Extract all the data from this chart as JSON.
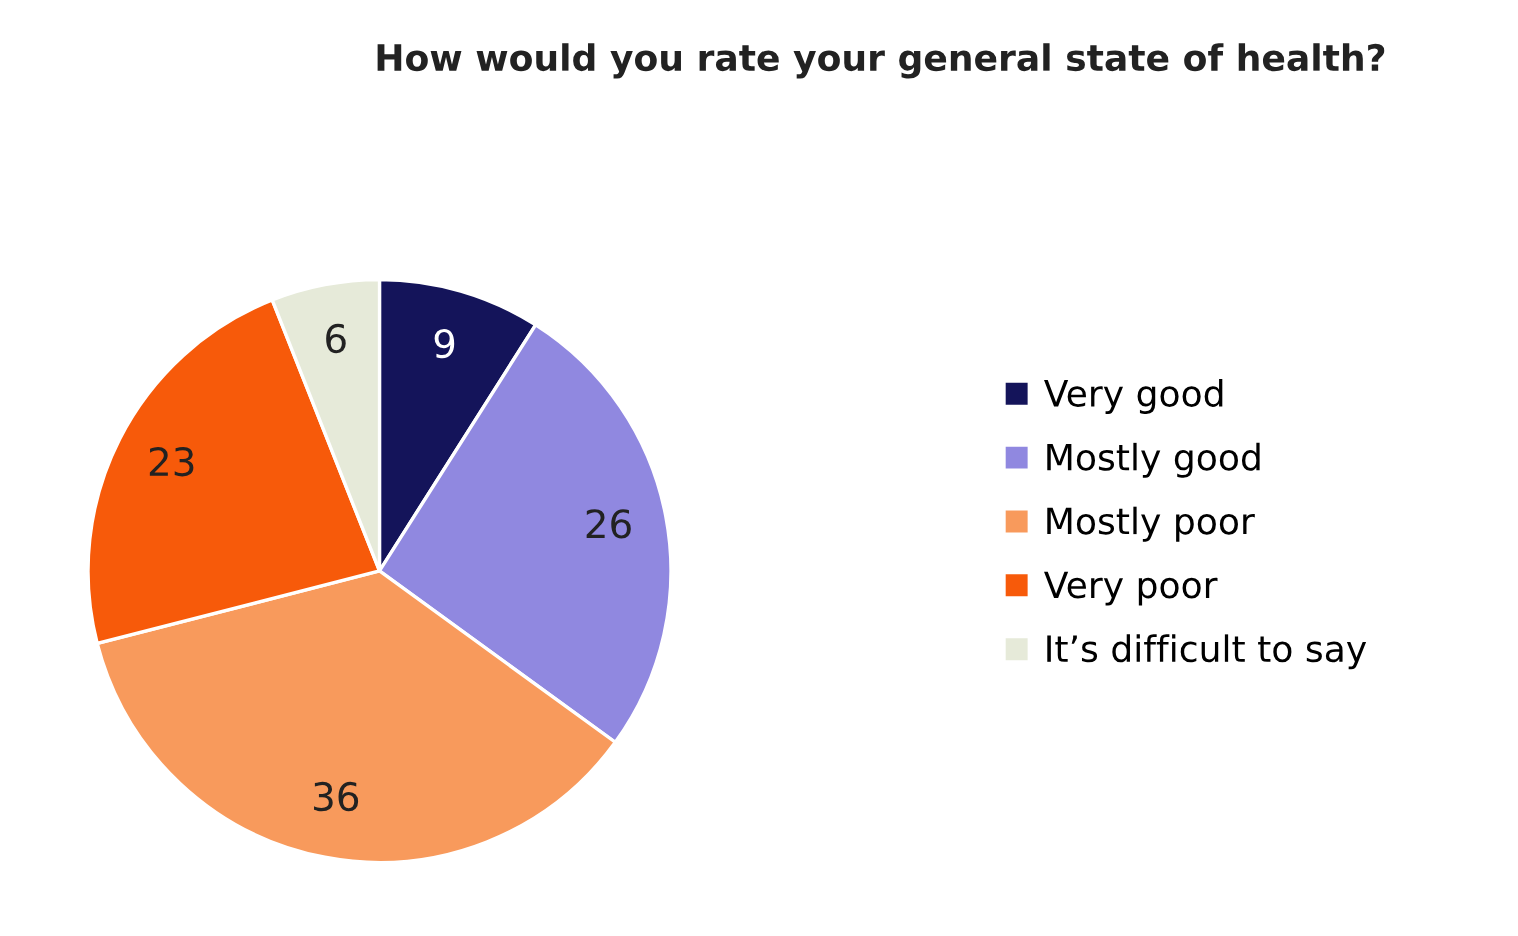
{
  "chart_data": {
    "type": "pie",
    "title": "How would you rate your general state of health?",
    "categories": [
      "Very good",
      "Mostly good",
      "Mostly poor",
      "Very poor",
      "It’s difficult to say"
    ],
    "values": [
      9,
      26,
      36,
      23,
      6
    ],
    "colors": [
      "#14145a",
      "#9088e0",
      "#f89a5c",
      "#f75a0a",
      "#e6ead9"
    ],
    "data_labels": true,
    "legend": "right"
  }
}
